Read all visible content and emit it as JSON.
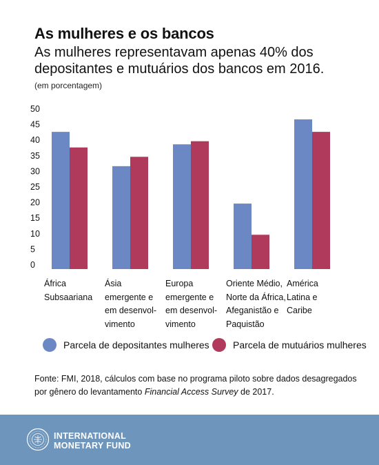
{
  "title": "As mulheres e os bancos",
  "subtitle": "As mulheres representavam apenas 40% dos depositantes e mutuários dos bancos em 2016.",
  "units": "(em porcentagem)",
  "chart_data": {
    "type": "bar",
    "categories": [
      "África\nSubsaariana",
      "Ásia\nemergente e\nem desenvol-\nvimento",
      "Europa\nemergente e\nem desenvol-\nvimento",
      "Oriente Médio,\nNorte da África,\nAfeganistão e\nPaquistão",
      "América\nLatina e\nCaribe"
    ],
    "series": [
      {
        "name": "Parcela de depositantes mulheres",
        "color": "#6c88c4",
        "values": [
          44,
          33,
          40,
          21,
          48
        ]
      },
      {
        "name": "Parcela de mutuários mulheres",
        "color": "#b03a5b",
        "values": [
          39,
          36,
          41,
          11,
          44
        ]
      }
    ],
    "yticks": [
      "50",
      "45",
      "40",
      "35",
      "30",
      "25",
      "20",
      "15",
      "10",
      "5",
      "0"
    ],
    "ylim": [
      0,
      50
    ],
    "grid": false,
    "legend": "bottom"
  },
  "source": {
    "prefix": "Fonte: FMI, 2018, cálculos com base no programa piloto sobre dados desagregados por gênero do levantamento ",
    "italic": "Financial Access Survey",
    "suffix": " de 2017."
  },
  "footer": {
    "org_line1": "INTERNATIONAL",
    "org_line2": "MONETARY FUND",
    "color": "#6e96bd"
  }
}
